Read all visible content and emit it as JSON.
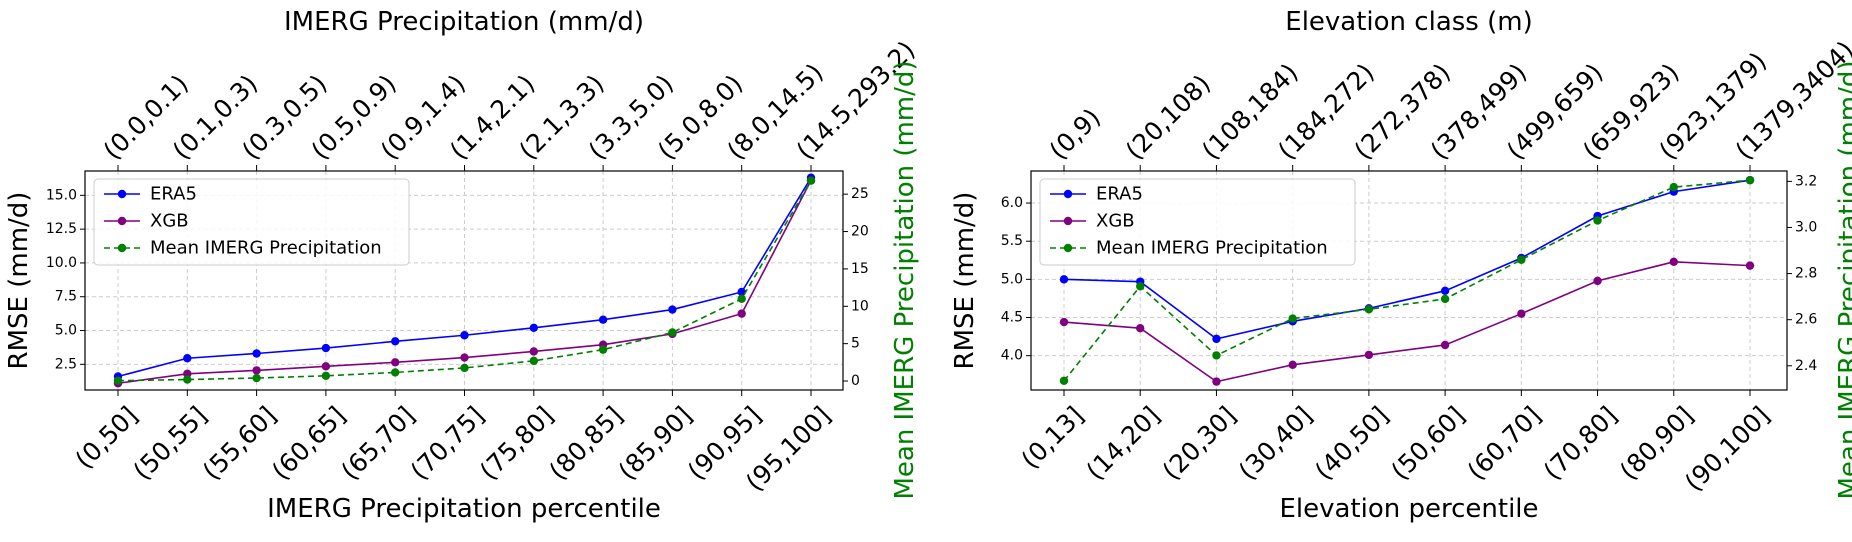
{
  "chart_data": [
    {
      "type": "line",
      "title": "IMERG Precipitation (mm/d)",
      "xlabel": "IMERG Precipitation percentile",
      "ylabel": "RMSE (mm/d)",
      "y2label": "Mean IMERG Precipitation (mm/d)",
      "categories": [
        "(0,50]",
        "(50,55]",
        "(55,60]",
        "(60,65]",
        "(65,70]",
        "(70,75]",
        "(75,80]",
        "(80,85]",
        "(85,90]",
        "(90,95]",
        "(95,100]"
      ],
      "top_categories": [
        "(0.0,0.1)",
        "(0.1,0.3)",
        "(0.3,0.5)",
        "(0.5,0.9)",
        "(0.9,1.4)",
        "(1.4,2.1)",
        "(2.1,3.3)",
        "(3.3,5.0)",
        "(5.0,8.0)",
        "(8.0,14.5)",
        "(14.5,293.2)"
      ],
      "ylim": [
        0.6,
        16.8
      ],
      "yticks": [
        "2.5",
        "5.0",
        "7.5",
        "10.0",
        "12.5",
        "15.0"
      ],
      "y2lim": [
        -1.2,
        28.1
      ],
      "y2ticks": [
        "0",
        "5",
        "10",
        "15",
        "20",
        "25"
      ],
      "grid": true,
      "legend_position": "upper-left",
      "series": [
        {
          "name": "ERA5",
          "axis": "left",
          "color": "#0000ff",
          "dash": "solid",
          "values": [
            1.6,
            2.95,
            3.3,
            3.7,
            4.2,
            4.65,
            5.2,
            5.8,
            6.55,
            7.85,
            16.3
          ]
        },
        {
          "name": "XGB",
          "axis": "left",
          "color": "#800080",
          "dash": "solid",
          "values": [
            1.1,
            1.8,
            2.05,
            2.35,
            2.65,
            3.0,
            3.45,
            3.95,
            4.75,
            6.25,
            16.1
          ]
        },
        {
          "name": "Mean IMERG Precipitation",
          "axis": "right",
          "color": "#008000",
          "dash": "dashed",
          "values": [
            0.05,
            0.2,
            0.4,
            0.7,
            1.15,
            1.75,
            2.7,
            4.2,
            6.5,
            11.0,
            26.8
          ]
        }
      ]
    },
    {
      "type": "line",
      "title": "Elevation class (m)",
      "xlabel": "Elevation percentile",
      "ylabel": "RMSE (mm/d)",
      "y2label": "Mean IMERG Precipitation (mm/d)",
      "categories": [
        "(0,13]",
        "(14,20]",
        "(20,30]",
        "(30,40]",
        "(40,50]",
        "(50,60]",
        "(60,70]",
        "(70,80]",
        "(80,90]",
        "(90,100]"
      ],
      "top_categories": [
        "(0,9)",
        "(20,108)",
        "(108,184)",
        "(184,272)",
        "(272,378)",
        "(378,499)",
        "(499,659)",
        "(659,923)",
        "(923,1379)",
        "(1379,3404)"
      ],
      "ylim": [
        3.55,
        6.42
      ],
      "yticks": [
        "4.0",
        "4.5",
        "5.0",
        "5.5",
        "6.0"
      ],
      "y2lim": [
        2.295,
        3.245
      ],
      "y2ticks": [
        "2.4",
        "2.6",
        "2.8",
        "3.0",
        "3.2"
      ],
      "grid": true,
      "legend_position": "upper-left",
      "series": [
        {
          "name": "ERA5",
          "axis": "left",
          "color": "#0000ff",
          "dash": "solid",
          "values": [
            5.0,
            4.97,
            4.22,
            4.45,
            4.62,
            4.85,
            5.28,
            5.83,
            6.15,
            6.3
          ]
        },
        {
          "name": "XGB",
          "axis": "left",
          "color": "#800080",
          "dash": "solid",
          "values": [
            4.44,
            4.36,
            3.66,
            3.88,
            4.01,
            4.14,
            4.55,
            4.98,
            5.23,
            5.18
          ]
        },
        {
          "name": "Mean IMERG Precipitation",
          "axis": "right",
          "color": "#008000",
          "dash": "dashed",
          "values": [
            2.335,
            2.745,
            2.445,
            2.605,
            2.645,
            2.69,
            2.86,
            3.03,
            3.175,
            3.205
          ]
        }
      ]
    }
  ]
}
